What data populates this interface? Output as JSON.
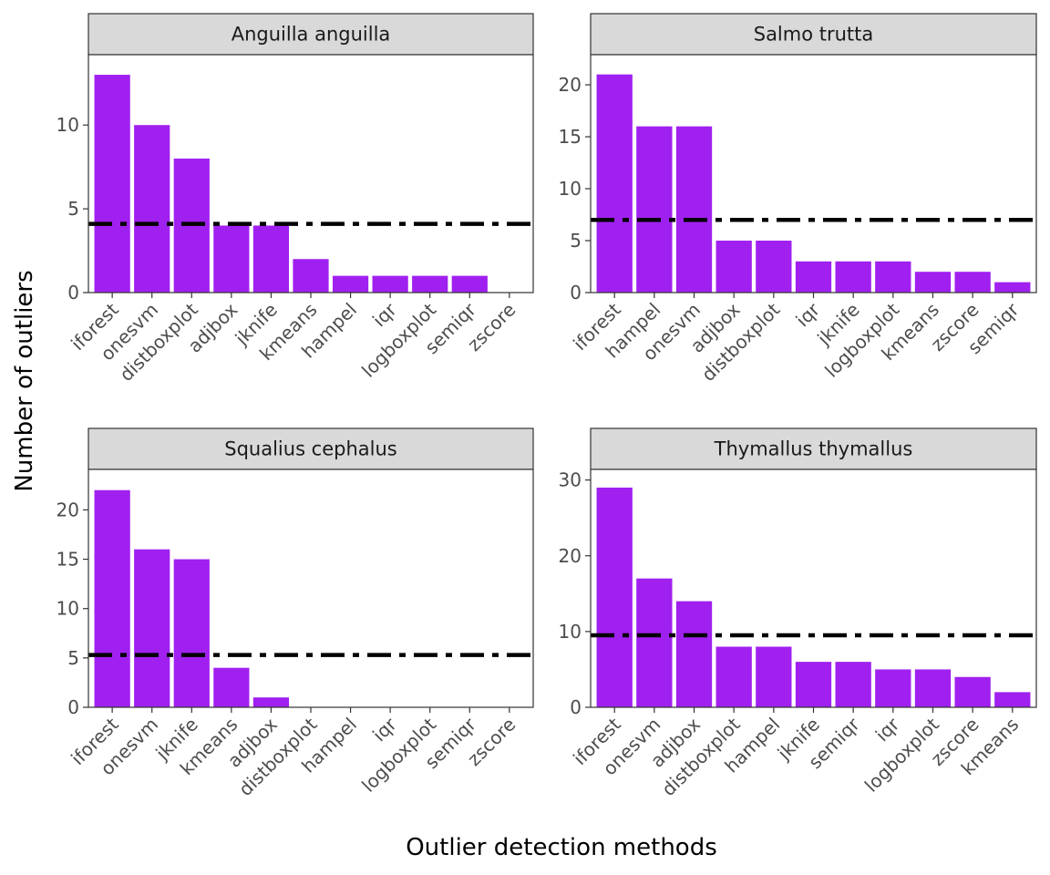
{
  "chart_data": {
    "type": "bar",
    "xlabel": "Outlier detection methods",
    "ylabel": "Number of outliers",
    "bar_color": "#A020F0",
    "reference_line": {
      "style": "dash-dot",
      "color": "#000000"
    },
    "panels": [
      {
        "title": "Anguilla anguilla",
        "categories": [
          "iforest",
          "onesvm",
          "distboxplot",
          "adjbox",
          "jknife",
          "kmeans",
          "hampel",
          "iqr",
          "logboxplot",
          "semiqr",
          "zscore"
        ],
        "values": [
          13,
          10,
          8,
          4,
          4,
          2,
          1,
          1,
          1,
          1,
          0
        ],
        "reference_value": 4.1,
        "ylim": [
          0,
          14.2
        ],
        "yticks": [
          0,
          5,
          10
        ]
      },
      {
        "title": "Salmo trutta",
        "categories": [
          "iforest",
          "hampel",
          "onesvm",
          "adjbox",
          "distboxplot",
          "iqr",
          "jknife",
          "logboxplot",
          "kmeans",
          "zscore",
          "semiqr"
        ],
        "values": [
          21,
          16,
          16,
          5,
          5,
          3,
          3,
          3,
          2,
          2,
          1
        ],
        "reference_value": 7,
        "ylim": [
          0,
          22.9
        ],
        "yticks": [
          0,
          5,
          10,
          15,
          20
        ]
      },
      {
        "title": "Squalius cephalus",
        "categories": [
          "iforest",
          "onesvm",
          "jknife",
          "kmeans",
          "adjbox",
          "distboxplot",
          "hampel",
          "iqr",
          "logboxplot",
          "semiqr",
          "zscore"
        ],
        "values": [
          22,
          16,
          15,
          4,
          1,
          0,
          0,
          0,
          0,
          0,
          0
        ],
        "reference_value": 5.3,
        "ylim": [
          0,
          24.1
        ],
        "yticks": [
          0,
          5,
          10,
          15,
          20
        ]
      },
      {
        "title": "Thymallus thymallus",
        "categories": [
          "iforest",
          "onesvm",
          "adjbox",
          "distboxplot",
          "hampel",
          "jknife",
          "semiqr",
          "iqr",
          "logboxplot",
          "zscore",
          "kmeans"
        ],
        "values": [
          29,
          17,
          14,
          8,
          8,
          6,
          6,
          5,
          5,
          4,
          2
        ],
        "reference_value": 9.5,
        "ylim": [
          0,
          31.4
        ],
        "yticks": [
          0,
          10,
          20,
          30
        ]
      }
    ]
  }
}
